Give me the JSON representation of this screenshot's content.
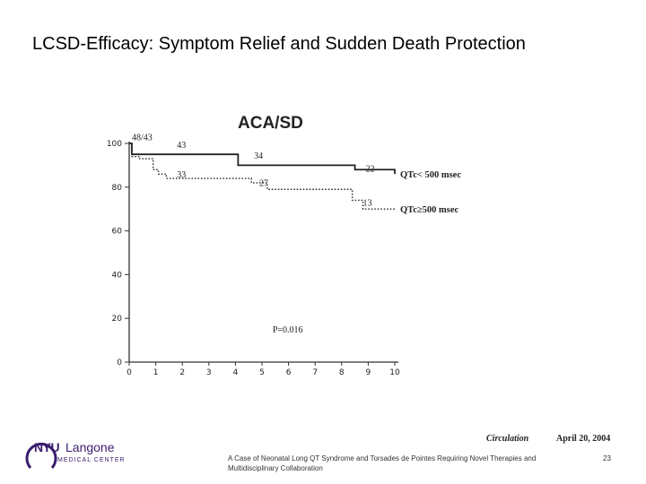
{
  "slide": {
    "title": "LCSD-Efficacy: Symptom Relief and Sudden Death Protection",
    "footer": "A Case of Neonatal Long QT Syndrome and Torsades de Pointes Requiring Novel Therapies and Multidisciplinary Collaboration",
    "page_number": "23",
    "citation_journal": "Circulation",
    "citation_date": "April 20, 2004",
    "logo": {
      "brand_nyu": "NYU",
      "brand_langone": "Langone",
      "brand_sub": "MEDICAL CENTER",
      "color": "#3a1d6e"
    }
  },
  "chart_data": {
    "type": "line",
    "title": "ACA/SD",
    "xlabel": "",
    "ylabel": "",
    "xlim": [
      0,
      10
    ],
    "ylim": [
      0,
      100
    ],
    "x_ticks": [
      "0",
      "1",
      "2",
      "3",
      "4",
      "5",
      "6",
      "7",
      "8",
      "9",
      "10"
    ],
    "y_ticks": [
      "0",
      "20",
      "40",
      "60",
      "80",
      "100"
    ],
    "grid": false,
    "step": true,
    "series": [
      {
        "name": "QTc< 500 msec",
        "style": "solid",
        "x": [
          0,
          0.1,
          4,
          4.1,
          6.3,
          8.5,
          10
        ],
        "y": [
          100,
          95,
          95,
          90,
          90,
          88,
          86
        ],
        "color": "#222222"
      },
      {
        "name": "QTc≥500 msec",
        "style": "dotted",
        "x": [
          0,
          0.1,
          0.4,
          0.9,
          1.1,
          1.4,
          4.2,
          4.6,
          5.2,
          8.0,
          8.4,
          8.8,
          10
        ],
        "y": [
          100,
          94,
          93,
          88,
          86,
          84,
          84,
          82,
          79,
          79,
          74,
          70,
          70
        ],
        "color": "#222222"
      }
    ],
    "annotations": [
      {
        "text": "48/43",
        "x": 0.1,
        "y": 101.5
      },
      {
        "text": "43",
        "x": 1.8,
        "y": 98
      },
      {
        "text": "34",
        "x": 4.7,
        "y": 93
      },
      {
        "text": "22",
        "x": 8.9,
        "y": 87
      },
      {
        "text": "33",
        "x": 1.8,
        "y": 84.5
      },
      {
        "text": "27",
        "x": 4.9,
        "y": 80.5
      },
      {
        "text": "13",
        "x": 8.8,
        "y": 71.5
      },
      {
        "text": "P=0.016",
        "x": 5.4,
        "y": 13.5
      }
    ]
  }
}
